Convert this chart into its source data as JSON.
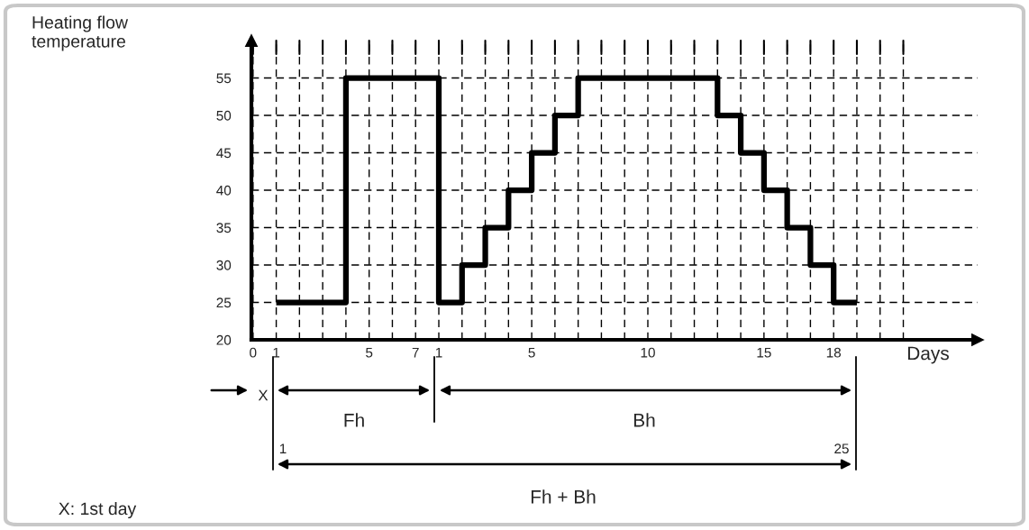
{
  "chart_data": {
    "type": "step",
    "xlabel": "Days",
    "categories": [
      "0",
      "1",
      null,
      null,
      null,
      "5",
      null,
      "7",
      "1",
      null,
      null,
      null,
      "5",
      null,
      null,
      null,
      null,
      "10",
      null,
      null,
      null,
      null,
      "15",
      null,
      null,
      "18",
      null,
      null,
      null
    ],
    "series": [
      {
        "color": "#000000",
        "values": [
          null,
          25,
          25,
          25,
          55,
          55,
          55,
          55,
          25,
          30,
          35,
          40,
          45,
          50,
          55,
          55,
          55,
          55,
          55,
          55,
          50,
          45,
          40,
          35,
          30,
          25,
          25,
          null,
          null
        ]
      }
    ],
    "ylim": [
      20,
      60
    ],
    "yticks": [
      20,
      25,
      30,
      35,
      40,
      45,
      50,
      55
    ],
    "grid": true,
    "line_style": "solid",
    "marker": "none",
    "annotations": [
      "X",
      "Fh",
      "Bh",
      "1",
      "25",
      "Fh + Bh",
      "X: 1st day",
      "Heating flow\ntemperature"
    ]
  }
}
